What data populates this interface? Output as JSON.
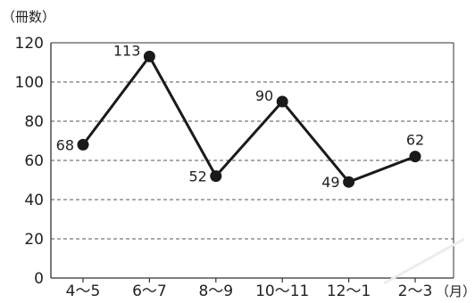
{
  "chart_data": {
    "type": "line",
    "categories": [
      "4〜5",
      "6〜7",
      "8〜9",
      "10〜11",
      "12〜1",
      "2〜3"
    ],
    "series": [
      {
        "values": [
          68,
          113,
          52,
          90,
          49,
          62
        ]
      }
    ],
    "data_labels": [
      "68",
      "113",
      "52",
      "90",
      "49",
      "62"
    ],
    "ylabel": "（冊数）",
    "xlabel": "（月）",
    "ylim": [
      0,
      120
    ],
    "y_ticks": [
      0,
      20,
      40,
      60,
      80,
      100,
      120
    ],
    "grid": "horizontal-dashed",
    "line_color": "#1a1a1a",
    "marker_color": "#1a1a1a"
  }
}
